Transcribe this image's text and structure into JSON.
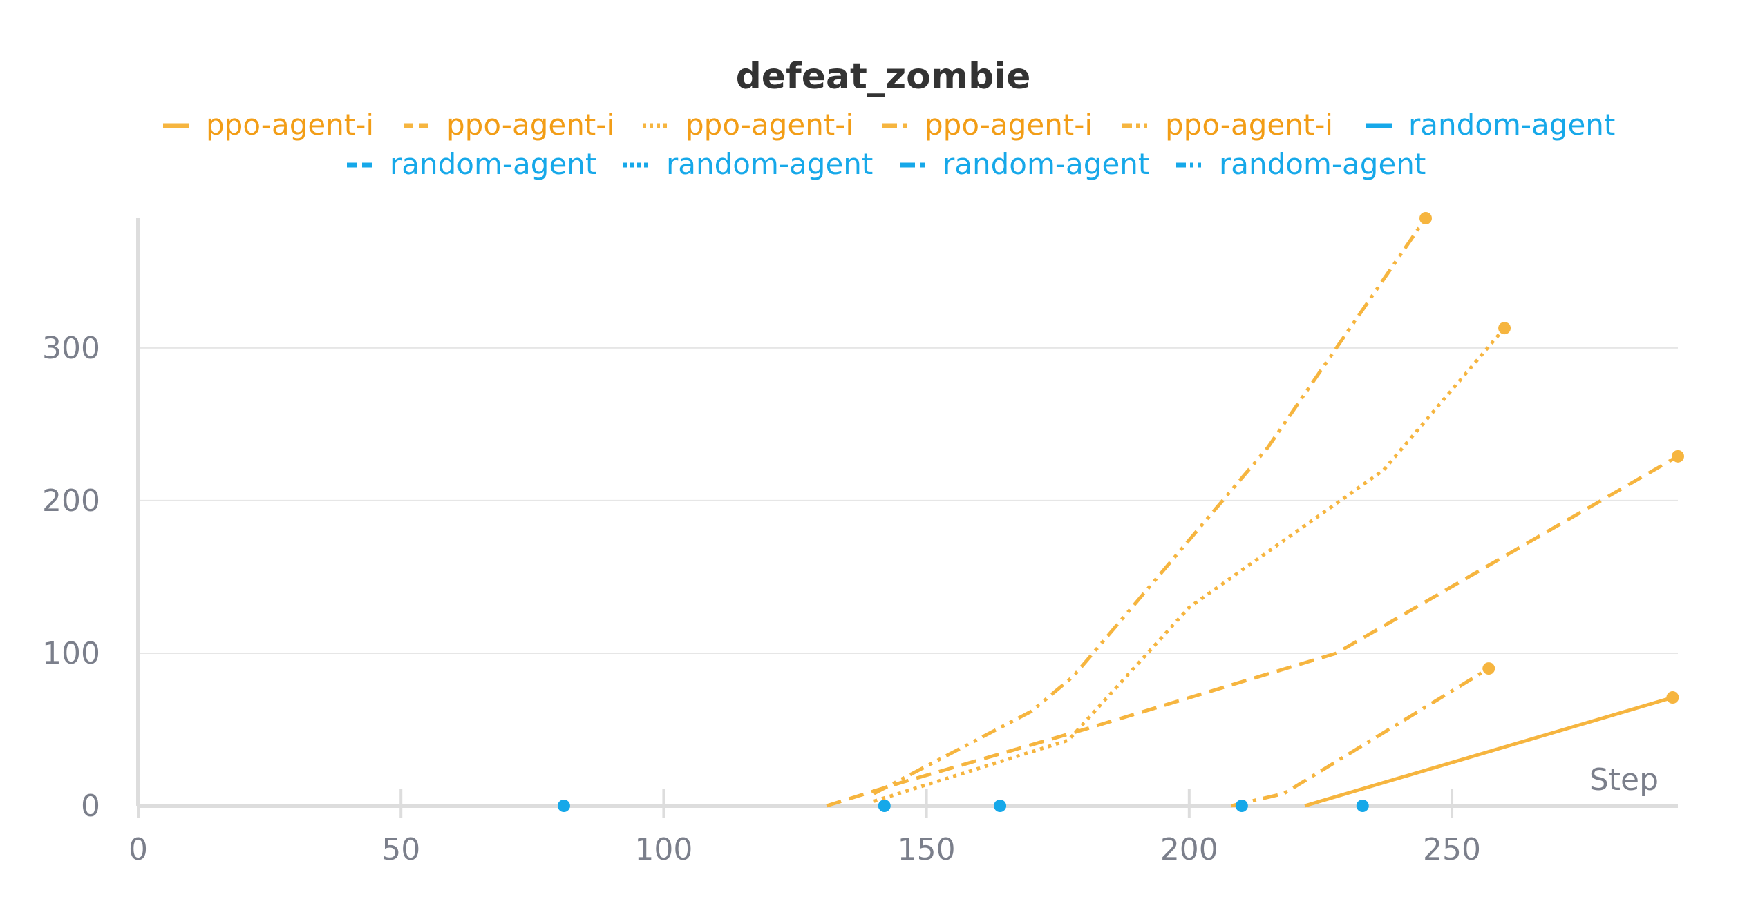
{
  "chart_data": {
    "type": "line",
    "title": "defeat_zombie",
    "xlabel": "Step",
    "ylabel": "",
    "xlim": [
      0,
      293
    ],
    "ylim": [
      0,
      385
    ],
    "x_ticks": [
      "0",
      "50",
      "100",
      "150",
      "200",
      "250"
    ],
    "y_ticks": [
      "0",
      "100",
      "200",
      "300"
    ],
    "grid": true,
    "legend_position": "top",
    "colors": {
      "ppo": "#f6b53f",
      "ppo_legend_text": "#f29d16",
      "random": "#16a8e9"
    },
    "series": [
      {
        "name": "ppo-agent-i",
        "group": "ppo",
        "dash": "solid",
        "points": [
          [
            222,
            0
          ],
          [
            292,
            71
          ]
        ]
      },
      {
        "name": "ppo-agent-i",
        "group": "ppo",
        "dash": "dash",
        "points": [
          [
            131,
            0
          ],
          [
            145,
            15
          ],
          [
            180,
            50
          ],
          [
            228,
            100
          ],
          [
            293,
            229
          ]
        ]
      },
      {
        "name": "ppo-agent-i",
        "group": "ppo",
        "dash": "dot",
        "points": [
          [
            140,
            3
          ],
          [
            177,
            43
          ],
          [
            200,
            130
          ],
          [
            237,
            220
          ],
          [
            260,
            313
          ]
        ]
      },
      {
        "name": "ppo-agent-i",
        "group": "ppo",
        "dash": "dashdot",
        "points": [
          [
            208,
            0
          ],
          [
            218,
            8
          ],
          [
            257,
            90
          ]
        ]
      },
      {
        "name": "ppo-agent-i",
        "group": "ppo",
        "dash": "dashdotdot",
        "points": [
          [
            140,
            8
          ],
          [
            170,
            62
          ],
          [
            178,
            85
          ],
          [
            215,
            235
          ],
          [
            245,
            385
          ]
        ]
      },
      {
        "name": "random-agent",
        "group": "random",
        "dash": "solid",
        "points": [
          [
            81,
            0
          ]
        ]
      },
      {
        "name": "random-agent",
        "group": "random",
        "dash": "dash",
        "points": [
          [
            142,
            0
          ]
        ]
      },
      {
        "name": "random-agent",
        "group": "random",
        "dash": "dot",
        "points": [
          [
            164,
            0
          ]
        ]
      },
      {
        "name": "random-agent",
        "group": "random",
        "dash": "dashdot",
        "points": [
          [
            210,
            0
          ]
        ]
      },
      {
        "name": "random-agent",
        "group": "random",
        "dash": "dashdotdot",
        "points": [
          [
            233,
            0
          ]
        ]
      }
    ]
  }
}
